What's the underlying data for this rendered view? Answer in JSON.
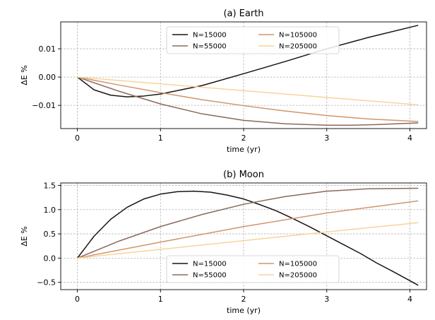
{
  "chart_data": [
    {
      "type": "line",
      "title": "(a) Earth",
      "xlabel": "time (yr)",
      "ylabel": "ΔE %",
      "xlim": [
        -0.2,
        4.2
      ],
      "ylim": [
        -0.0182,
        0.0195
      ],
      "xticks": [
        0,
        1,
        2,
        3,
        4
      ],
      "xtick_labels": [
        "0",
        "1",
        "2",
        "3",
        "4"
      ],
      "yticks": [
        -0.01,
        0.0,
        0.01
      ],
      "ytick_labels": [
        "−0.01",
        "0.00",
        "0.01"
      ],
      "grid": true,
      "legend": {
        "placement": "top-center",
        "columns": 2
      },
      "series": [
        {
          "name": "N=15000",
          "color": "#1a1411",
          "x": [
            0,
            0.2,
            0.4,
            0.6,
            0.8,
            1.0,
            1.5,
            2.0,
            2.5,
            3.0,
            3.5,
            4.1
          ],
          "y": [
            0.0,
            -0.0045,
            -0.0064,
            -0.007,
            -0.0067,
            -0.006,
            -0.003,
            0.0012,
            0.0055,
            0.01,
            0.014,
            0.0183
          ]
        },
        {
          "name": "N=55000",
          "color": "#8a6a5a",
          "x": [
            0,
            0.5,
            1.0,
            1.5,
            2.0,
            2.5,
            3.0,
            3.3,
            3.6,
            4.1
          ],
          "y": [
            0.0,
            -0.005,
            -0.0095,
            -0.013,
            -0.0153,
            -0.0165,
            -0.017,
            -0.017,
            -0.0168,
            -0.0162
          ]
        },
        {
          "name": "N=105000",
          "color": "#d2946e",
          "x": [
            0,
            0.5,
            1.0,
            1.5,
            2.0,
            2.5,
            3.0,
            3.5,
            4.1
          ],
          "y": [
            0.0,
            -0.0028,
            -0.0055,
            -0.008,
            -0.0101,
            -0.012,
            -0.0136,
            -0.0148,
            -0.0157
          ]
        },
        {
          "name": "N=205000",
          "color": "#f8d49a",
          "x": [
            0,
            1.0,
            2.0,
            3.0,
            4.1
          ],
          "y": [
            0.0,
            -0.0024,
            -0.0048,
            -0.0072,
            -0.0098
          ]
        }
      ]
    },
    {
      "type": "line",
      "title": "(b) Moon",
      "xlabel": "time (yr)",
      "ylabel": "ΔE %",
      "xlim": [
        -0.2,
        4.2
      ],
      "ylim": [
        -0.65,
        1.55
      ],
      "xticks": [
        0,
        1,
        2,
        3,
        4
      ],
      "xtick_labels": [
        "0",
        "1",
        "2",
        "3",
        "4"
      ],
      "yticks": [
        -0.5,
        0.0,
        0.5,
        1.0,
        1.5
      ],
      "ytick_labels": [
        "−0.5",
        "0.0",
        "0.5",
        "1.0",
        "1.5"
      ],
      "grid": true,
      "legend": {
        "placement": "bottom-center",
        "columns": 2
      },
      "series": [
        {
          "name": "N=15000",
          "color": "#1a1411",
          "x": [
            0,
            0.2,
            0.4,
            0.6,
            0.8,
            1.0,
            1.2,
            1.4,
            1.6,
            1.8,
            2.0,
            2.2,
            2.4,
            2.6,
            2.8,
            3.0,
            3.2,
            3.4,
            3.6,
            3.8,
            4.1
          ],
          "y": [
            0.0,
            0.45,
            0.8,
            1.05,
            1.22,
            1.32,
            1.37,
            1.38,
            1.36,
            1.3,
            1.22,
            1.1,
            0.97,
            0.81,
            0.64,
            0.46,
            0.28,
            0.1,
            -0.1,
            -0.28,
            -0.56
          ]
        },
        {
          "name": "N=55000",
          "color": "#8a6a5a",
          "x": [
            0,
            0.5,
            1.0,
            1.5,
            2.0,
            2.5,
            3.0,
            3.5,
            4.1
          ],
          "y": [
            0.0,
            0.35,
            0.65,
            0.9,
            1.11,
            1.27,
            1.38,
            1.43,
            1.44
          ]
        },
        {
          "name": "N=105000",
          "color": "#d2946e",
          "x": [
            0,
            1.0,
            2.0,
            3.0,
            4.1
          ],
          "y": [
            0.0,
            0.33,
            0.65,
            0.93,
            1.18
          ]
        },
        {
          "name": "N=205000",
          "color": "#f8d49a",
          "x": [
            0,
            1.0,
            2.0,
            3.0,
            4.1
          ],
          "y": [
            0.0,
            0.18,
            0.36,
            0.54,
            0.73
          ]
        }
      ]
    }
  ]
}
